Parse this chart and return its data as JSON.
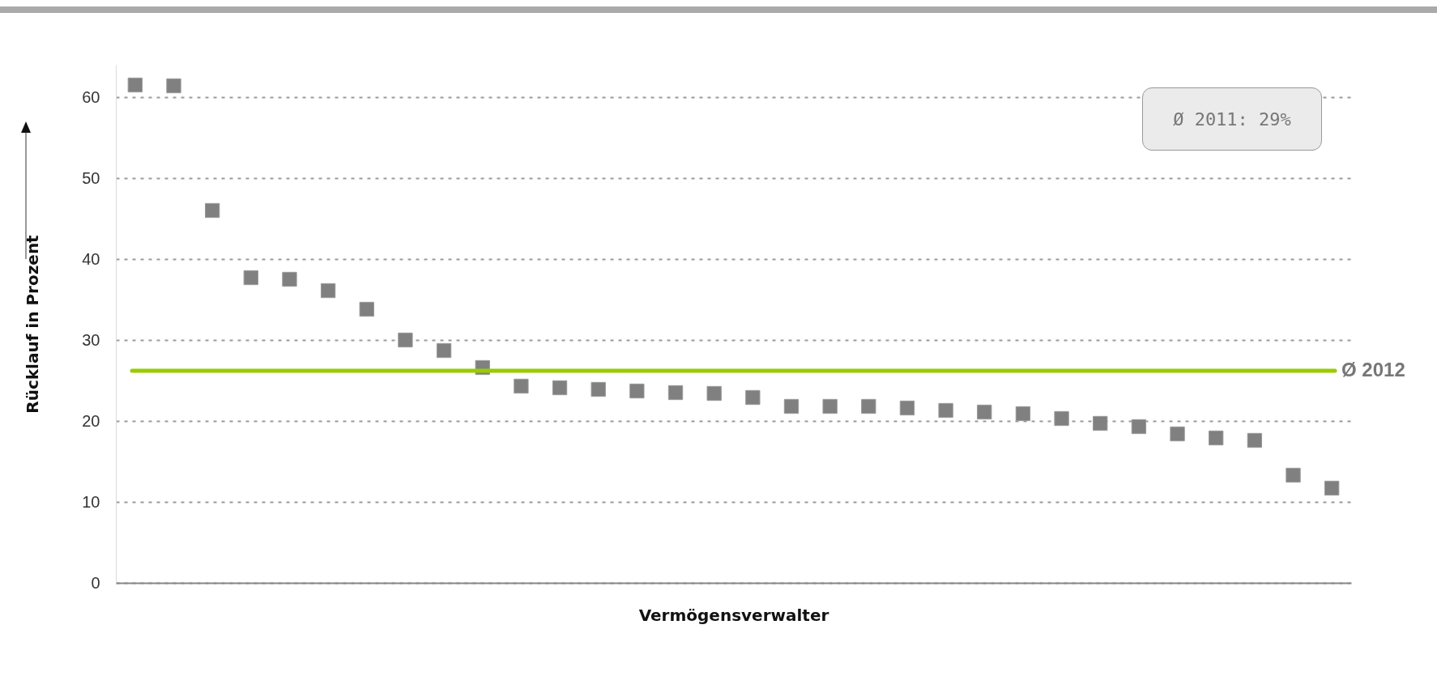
{
  "chart_data": {
    "type": "scatter",
    "xlabel": "Vermögensverwalter",
    "ylabel": "Rücklauf in Prozent",
    "categories": [
      null,
      null,
      null,
      null,
      null,
      null,
      null,
      null,
      null,
      null,
      null,
      null,
      null,
      null,
      null,
      null,
      null,
      null,
      null,
      null,
      null,
      null,
      null,
      null,
      null,
      null,
      null,
      null,
      null,
      null,
      null,
      null
    ],
    "series": [
      {
        "color": "#808080",
        "values": [
          61.5,
          61.4,
          46.0,
          37.7,
          37.5,
          36.1,
          33.8,
          30.0,
          28.7,
          26.6,
          24.3,
          24.1,
          23.9,
          23.7,
          23.5,
          23.4,
          22.9,
          21.8,
          21.8,
          21.8,
          21.6,
          21.3,
          21.1,
          20.9,
          20.3,
          19.7,
          19.3,
          18.4,
          17.9,
          17.6,
          13.3,
          11.7
        ]
      }
    ],
    "ylim": [
      0,
      64
    ],
    "yticks": [
      0,
      10,
      20,
      30,
      40,
      50,
      60
    ],
    "grid": "y",
    "marker": "square",
    "ref_lines": [
      {
        "axis": "y",
        "value": 26.2,
        "label": "Ø 2012",
        "color": "#99cc00"
      }
    ],
    "annotations": [
      "Ø 2011: 29%"
    ]
  }
}
